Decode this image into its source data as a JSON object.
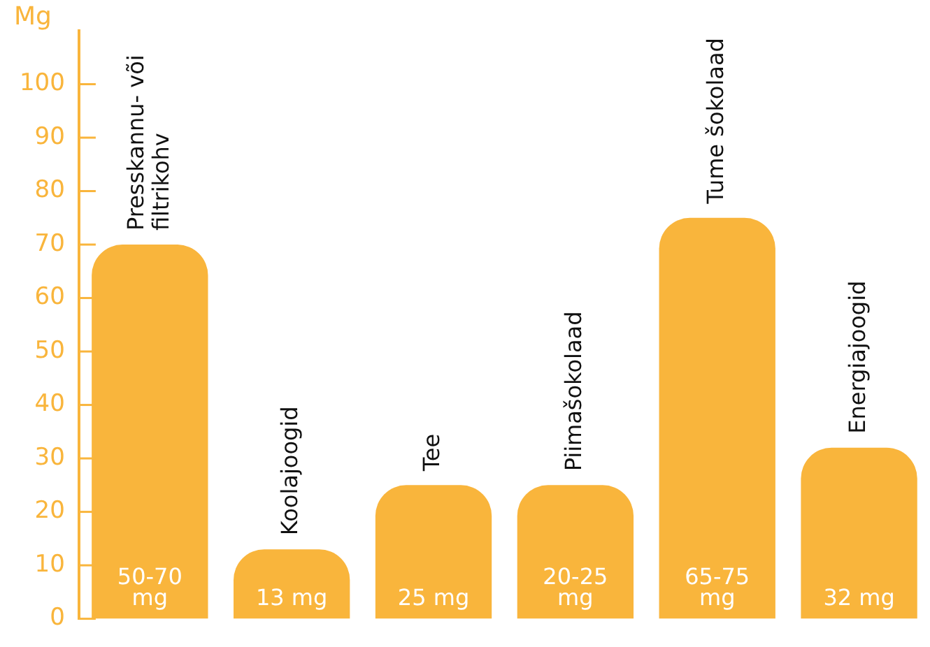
{
  "chart_data": {
    "type": "bar",
    "ylabel": "Mg",
    "categories": [
      "Presskannu- või filtrikohv",
      "Koolajoogid",
      "Tee",
      "Piimašokolaad",
      "Tume šokolaad",
      "Energiajoogid"
    ],
    "values": [
      70,
      13,
      25,
      25,
      75,
      32
    ],
    "value_labels": [
      "50-70 mg",
      "13 mg",
      "25 mg",
      "20-25 mg",
      "65-75 mg",
      "32 mg"
    ],
    "color": "#f9b53c",
    "ylim": [
      0,
      110
    ],
    "yticks": [
      0,
      10,
      20,
      30,
      40,
      50,
      60,
      70,
      80,
      90,
      100
    ]
  }
}
